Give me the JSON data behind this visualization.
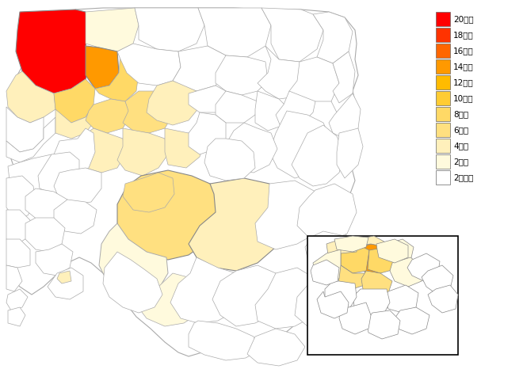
{
  "title": "",
  "legend_labels": [
    "20件～",
    "18件～",
    "16件～",
    "14件～",
    "12件～",
    "10件～",
    "8件～",
    "6件～",
    "4件～",
    "2件～",
    "2件未満"
  ],
  "legend_colors": [
    "#FF0000",
    "#FF3300",
    "#FF6600",
    "#FF9900",
    "#FFBB00",
    "#FFCC33",
    "#FFD966",
    "#FFE080",
    "#FFF0BB",
    "#FFFADD",
    "#FFFFFF"
  ],
  "background_color": "#FFFFFF",
  "fig_width": 6.6,
  "fig_height": 4.95,
  "dpi": 100
}
